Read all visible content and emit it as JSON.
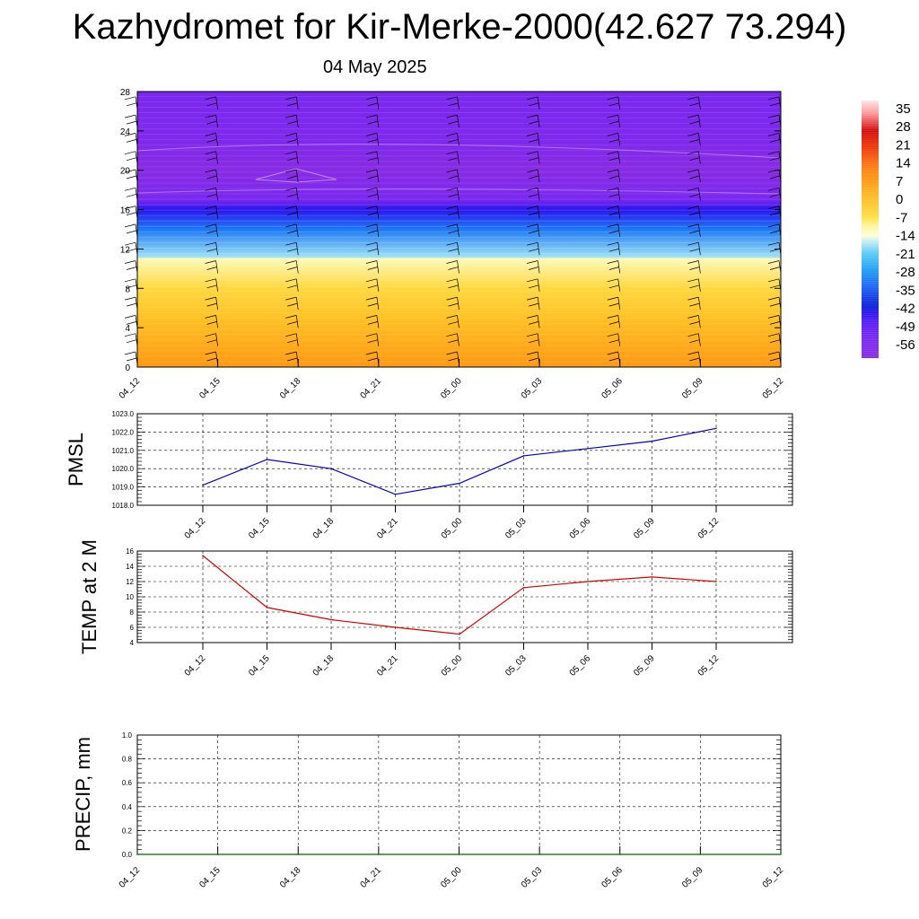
{
  "header": {
    "title": "Kazhydromet for Kir-Merke-2000(42.627 73.294)",
    "date": "04 May 2025"
  },
  "colorbar": {
    "labels": [
      "35",
      "28",
      "21",
      "14",
      "7",
      "0",
      "-7",
      "-14",
      "-21",
      "-28",
      "-35",
      "-42",
      "-49",
      "-56"
    ]
  },
  "chart_data": [
    {
      "type": "heatmap",
      "name": "cross-section",
      "xticks": [
        "04_12",
        "04_15",
        "04_18",
        "04_21",
        "05_00",
        "05_03",
        "05_06",
        "05_09",
        "05_12"
      ],
      "yticks": [
        "0",
        "4",
        "8",
        "12",
        "16",
        "20",
        "24",
        "28"
      ],
      "ylim": [
        0,
        28
      ],
      "color_levels": [
        {
          "y": 0,
          "value": 8
        },
        {
          "y": 2,
          "value": 5
        },
        {
          "y": 5,
          "value": 0
        },
        {
          "y": 8,
          "value": -5
        },
        {
          "y": 11,
          "value": -12
        },
        {
          "y": 11.2,
          "value": -18
        },
        {
          "y": 14,
          "value": -32
        },
        {
          "y": 16,
          "value": -45
        },
        {
          "y": 17,
          "value": -56
        },
        {
          "y": 20,
          "value": -62
        },
        {
          "y": 23,
          "value": -58
        },
        {
          "y": 28,
          "value": -56
        }
      ]
    },
    {
      "type": "line",
      "ylabel": "PMSL",
      "categories": [
        "04_12",
        "04_15",
        "04_18",
        "04_21",
        "05_00",
        "05_03",
        "05_06",
        "05_09",
        "05_12"
      ],
      "values": [
        1019.1,
        1020.5,
        1020.0,
        1018.6,
        1019.2,
        1020.7,
        1021.1,
        1021.5,
        1022.2
      ],
      "ylim": [
        1018.0,
        1023.0
      ],
      "yticks": [
        "1018.0",
        "1019.0",
        "1020.0",
        "1021.0",
        "1022.0",
        "1023.0"
      ],
      "color": "#0000cc"
    },
    {
      "type": "line",
      "ylabel": "TEMP at 2 M",
      "categories": [
        "04_12",
        "04_15",
        "04_18",
        "04_21",
        "05_00",
        "05_03",
        "05_06",
        "05_09",
        "05_12"
      ],
      "values": [
        15.4,
        8.6,
        7.0,
        6.0,
        5.1,
        11.2,
        12.0,
        12.6,
        12.0
      ],
      "ylim": [
        4,
        16
      ],
      "yticks": [
        "4",
        "6",
        "8",
        "10",
        "12",
        "14",
        "16"
      ],
      "color": "#dd0000"
    },
    {
      "type": "line",
      "ylabel": "PRECIP, mm",
      "xticks": [
        "04_12",
        "04_15",
        "04_18",
        "04_21",
        "05_00",
        "05_03",
        "05_06",
        "05_09",
        "05_12"
      ],
      "values": [
        0,
        0,
        0,
        0,
        0,
        0,
        0,
        0,
        0
      ],
      "ylim": [
        0.0,
        1.0
      ],
      "yticks": [
        "0.0",
        "0.2",
        "0.4",
        "0.6",
        "0.8",
        "1.0"
      ],
      "color": "#006600"
    }
  ]
}
